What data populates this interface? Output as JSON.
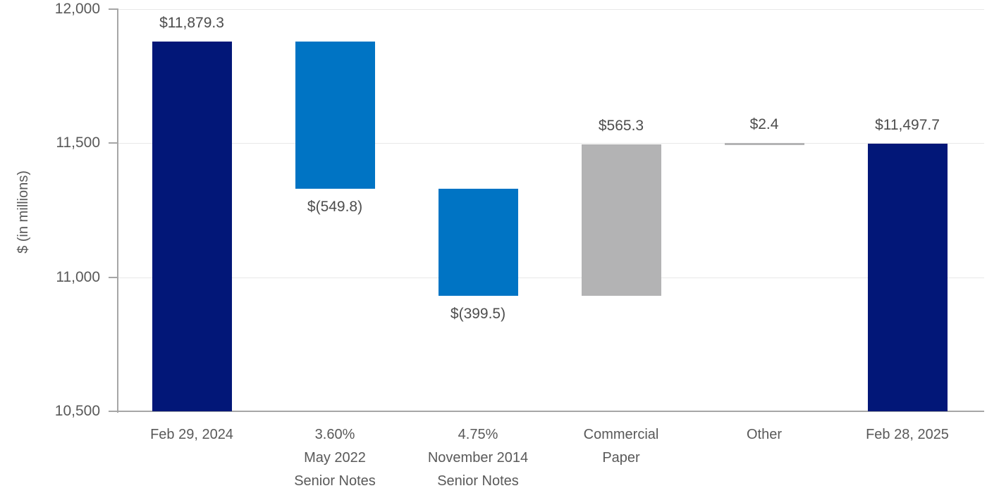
{
  "chart_data": {
    "type": "waterfall",
    "title": "",
    "ylabel": "$ (in millions)",
    "axis": {
      "ymin": 10500,
      "ymax": 12000,
      "ystep": 500,
      "ytick_labels": [
        "10,500",
        "11,000",
        "11,500",
        "12,000"
      ]
    },
    "grid": "horizontal-light",
    "legend": "none",
    "colors": {
      "endpoint_bar": "#021778",
      "decrease_bar": "#0074C4",
      "increase_bar": "#B3B3B4",
      "axis_line": "#A6A6A6",
      "gridline": "#E8E8E8",
      "axis_text": "#595959",
      "data_label_text": "#4D4D4D"
    },
    "bars": [
      {
        "category_lines": [
          "Feb 29, 2024"
        ],
        "label": "$11,879.3",
        "value": 11879.3,
        "start": 10500,
        "end": 11879.3,
        "role": "endpoint",
        "label_position": "above"
      },
      {
        "category_lines": [
          "3.60%",
          "May 2022",
          "Senior Notes"
        ],
        "label": "$(549.8)",
        "value": -549.8,
        "start": 11879.3,
        "end": 11329.5,
        "role": "decrease",
        "label_position": "below"
      },
      {
        "category_lines": [
          "4.75%",
          "November 2014",
          "Senior Notes"
        ],
        "label": "$(399.5)",
        "value": -399.5,
        "start": 11329.5,
        "end": 10930.0,
        "role": "decrease",
        "label_position": "below"
      },
      {
        "category_lines": [
          "Commercial",
          "Paper"
        ],
        "label": "$565.3",
        "value": 565.3,
        "start": 10930.0,
        "end": 11495.3,
        "role": "increase",
        "label_position": "above"
      },
      {
        "category_lines": [
          "Other"
        ],
        "label": "$2.4",
        "value": 2.4,
        "start": 11495.3,
        "end": 11497.7,
        "role": "increase",
        "label_position": "above"
      },
      {
        "category_lines": [
          "Feb 28, 2025"
        ],
        "label": "$11,497.7",
        "value": 11497.7,
        "start": 10500,
        "end": 11497.7,
        "role": "endpoint",
        "label_position": "above"
      }
    ]
  }
}
